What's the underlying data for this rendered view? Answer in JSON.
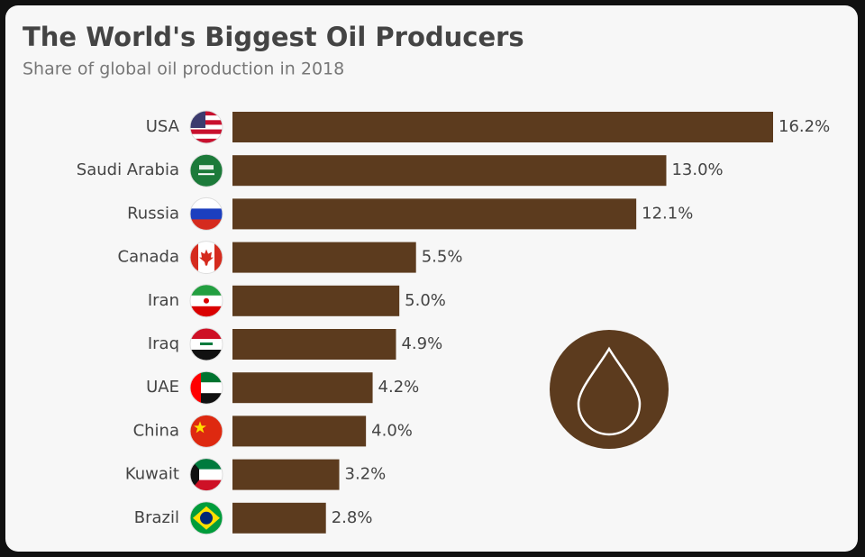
{
  "chart_data": {
    "type": "bar",
    "orientation": "horizontal",
    "title": "The World's Biggest Oil Producers",
    "subtitle": "Share of global oil production in 2018",
    "categories": [
      "USA",
      "Saudi Arabia",
      "Russia",
      "Canada",
      "Iran",
      "Iraq",
      "UAE",
      "China",
      "Kuwait",
      "Brazil"
    ],
    "values": [
      16.2,
      13.0,
      12.1,
      5.5,
      5.0,
      4.9,
      4.2,
      4.0,
      3.2,
      2.8
    ],
    "value_labels": [
      "16.2%",
      "13.0%",
      "12.1%",
      "5.5%",
      "5.0%",
      "4.9%",
      "4.2%",
      "4.0%",
      "3.2%",
      "2.8%"
    ],
    "color": "#5c3b1e"
  }
}
